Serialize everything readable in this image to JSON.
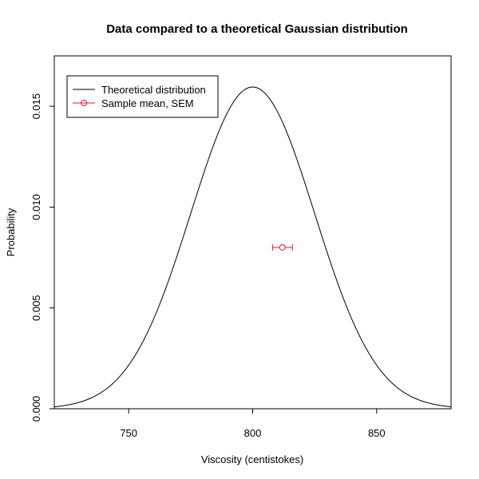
{
  "chart_data": {
    "type": "line",
    "title": "Data compared to a theoretical Gaussian distribution",
    "xlabel": "Viscosity (centistokes)",
    "ylabel": "Probability",
    "xlim": [
      720,
      880
    ],
    "ylim": [
      0,
      0.0175
    ],
    "x_ticks": [
      750,
      800,
      850
    ],
    "x_tick_labels": [
      "750",
      "800",
      "850"
    ],
    "y_ticks": [
      0.0,
      0.005,
      0.01,
      0.015
    ],
    "y_tick_labels": [
      "0.000",
      "0.005",
      "0.010",
      "0.015"
    ],
    "series": [
      {
        "name": "Theoretical distribution",
        "kind": "gaussian",
        "mean": 800,
        "sd": 25,
        "x_range": [
          720,
          880
        ],
        "color": "#000000"
      },
      {
        "name": "Sample mean, SEM",
        "kind": "errorbar-point",
        "x": 812,
        "y": 0.008,
        "x_err": [
          808,
          816
        ],
        "color": "#e8142f"
      }
    ],
    "legend": {
      "position": "top-left",
      "entries": [
        "Theoretical distribution",
        "Sample mean, SEM"
      ]
    }
  }
}
